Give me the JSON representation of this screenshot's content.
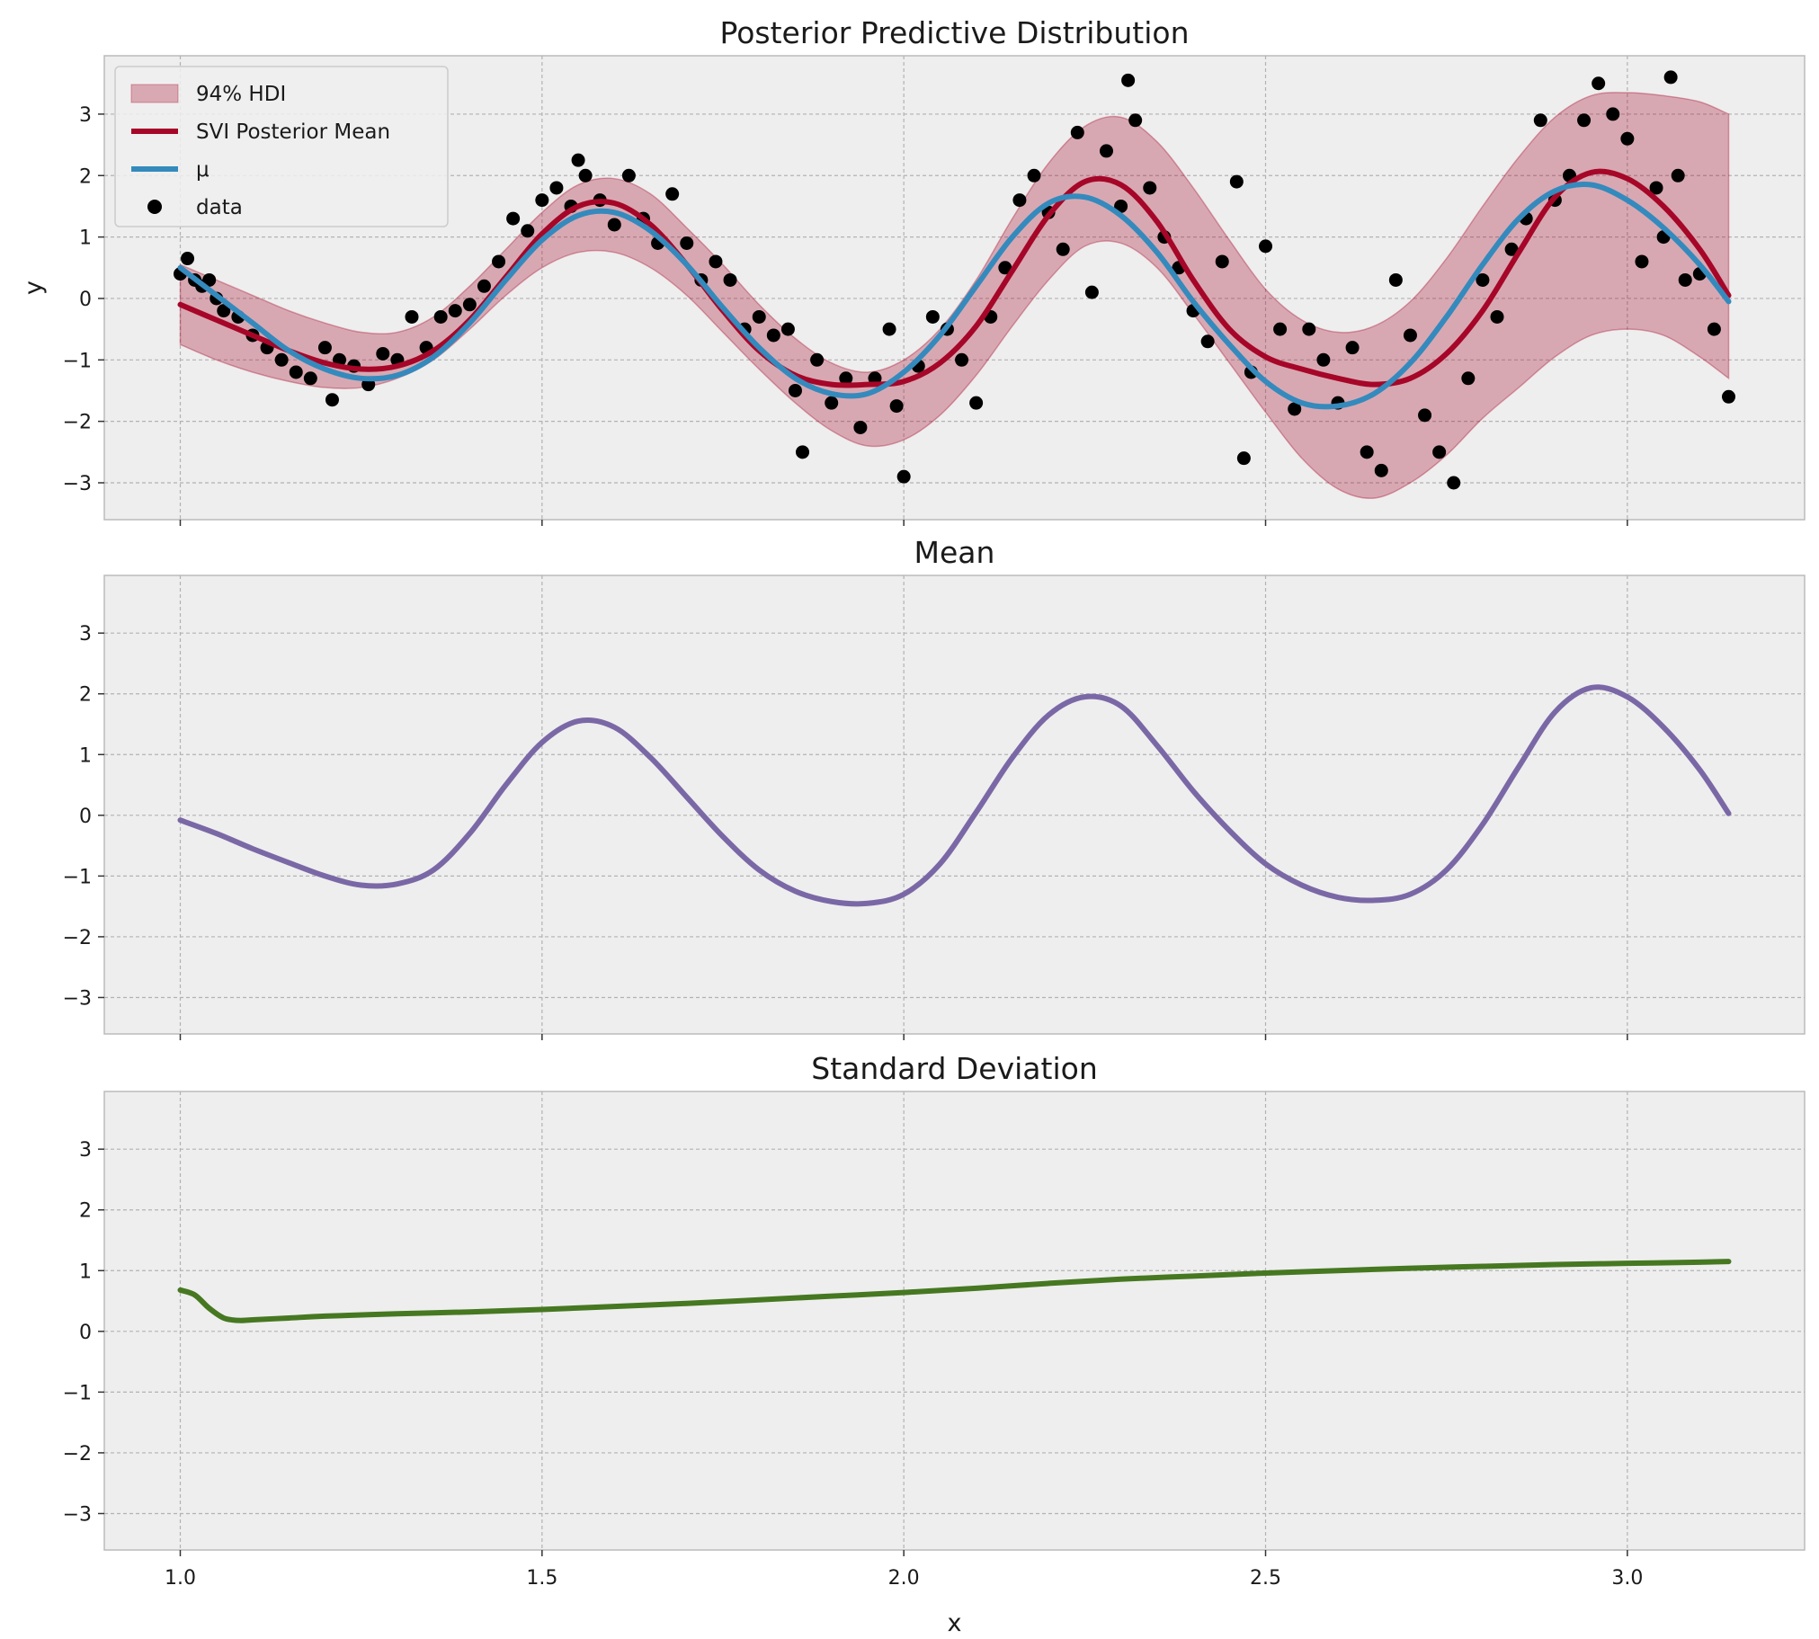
{
  "chart_data": [
    {
      "type": "line",
      "title": "Posterior Predictive Distribution",
      "xlabel": "",
      "ylabel": "y",
      "xlim": [
        0.895,
        3.245
      ],
      "ylim": [
        -3.6,
        3.95
      ],
      "xticks": [
        1.0,
        1.5,
        2.0,
        2.5,
        3.0
      ],
      "yticks": [
        -3,
        -2,
        -1,
        0,
        1,
        2,
        3
      ],
      "xtick_labels_visible": false,
      "grid": true,
      "legend_position": "top-left",
      "legend": [
        "94% HDI",
        "SVI Posterior Mean",
        "μ",
        "data"
      ],
      "colors": {
        "hdi": "#a60628",
        "svi_mean": "#a60628",
        "mu": "#348abd",
        "data": "#000000"
      },
      "series": [
        {
          "name": "94% HDI",
          "kind": "band",
          "x": [
            1.0,
            1.05,
            1.1,
            1.15,
            1.2,
            1.25,
            1.3,
            1.35,
            1.4,
            1.45,
            1.5,
            1.55,
            1.6,
            1.65,
            1.7,
            1.75,
            1.8,
            1.85,
            1.9,
            1.95,
            2.0,
            2.05,
            2.1,
            2.15,
            2.2,
            2.25,
            2.3,
            2.35,
            2.4,
            2.45,
            2.5,
            2.55,
            2.6,
            2.65,
            2.7,
            2.75,
            2.8,
            2.85,
            2.9,
            2.95,
            3.0,
            3.05,
            3.1,
            3.14
          ],
          "lower": [
            -0.75,
            -1.0,
            -1.2,
            -1.35,
            -1.45,
            -1.45,
            -1.3,
            -1.0,
            -0.5,
            0.05,
            0.5,
            0.75,
            0.75,
            0.5,
            0.05,
            -0.55,
            -1.15,
            -1.7,
            -2.15,
            -2.4,
            -2.3,
            -1.9,
            -1.25,
            -0.45,
            0.3,
            0.85,
            0.9,
            0.5,
            -0.25,
            -1.05,
            -1.85,
            -2.6,
            -3.1,
            -3.25,
            -3.0,
            -2.55,
            -1.95,
            -1.45,
            -0.95,
            -0.6,
            -0.5,
            -0.6,
            -0.95,
            -1.3
          ],
          "upper": [
            0.55,
            0.3,
            0.05,
            -0.2,
            -0.4,
            -0.55,
            -0.55,
            -0.3,
            0.2,
            0.8,
            1.4,
            1.85,
            1.95,
            1.7,
            1.15,
            0.55,
            -0.1,
            -0.65,
            -1.05,
            -1.2,
            -1.0,
            -0.5,
            0.3,
            1.3,
            2.2,
            2.8,
            2.95,
            2.55,
            1.8,
            0.95,
            0.15,
            -0.35,
            -0.55,
            -0.45,
            -0.05,
            0.65,
            1.5,
            2.3,
            2.95,
            3.3,
            3.35,
            3.3,
            3.2,
            3.0
          ]
        },
        {
          "name": "SVI Posterior Mean",
          "kind": "line",
          "x": [
            1.0,
            1.05,
            1.1,
            1.15,
            1.2,
            1.25,
            1.3,
            1.35,
            1.4,
            1.45,
            1.5,
            1.55,
            1.6,
            1.65,
            1.7,
            1.75,
            1.8,
            1.85,
            1.9,
            1.95,
            2.0,
            2.05,
            2.1,
            2.15,
            2.2,
            2.25,
            2.3,
            2.35,
            2.4,
            2.45,
            2.5,
            2.55,
            2.6,
            2.65,
            2.7,
            2.75,
            2.8,
            2.85,
            2.9,
            2.95,
            3.0,
            3.05,
            3.1,
            3.14
          ],
          "y": [
            -0.1,
            -0.35,
            -0.6,
            -0.85,
            -1.05,
            -1.15,
            -1.1,
            -0.85,
            -0.35,
            0.35,
            1.05,
            1.5,
            1.55,
            1.2,
            0.55,
            -0.2,
            -0.85,
            -1.25,
            -1.4,
            -1.4,
            -1.35,
            -1.05,
            -0.45,
            0.45,
            1.35,
            1.9,
            1.85,
            1.25,
            0.3,
            -0.5,
            -0.95,
            -1.15,
            -1.3,
            -1.4,
            -1.3,
            -0.9,
            -0.2,
            0.75,
            1.65,
            2.05,
            1.95,
            1.5,
            0.8,
            0.05
          ]
        },
        {
          "name": "μ",
          "kind": "line",
          "x": [
            1.0,
            1.05,
            1.1,
            1.15,
            1.2,
            1.25,
            1.3,
            1.35,
            1.4,
            1.45,
            1.5,
            1.55,
            1.6,
            1.65,
            1.7,
            1.75,
            1.8,
            1.85,
            1.9,
            1.95,
            2.0,
            2.05,
            2.1,
            2.15,
            2.2,
            2.25,
            2.3,
            2.35,
            2.4,
            2.45,
            2.5,
            2.55,
            2.6,
            2.65,
            2.7,
            2.75,
            2.8,
            2.85,
            2.9,
            2.95,
            3.0,
            3.05,
            3.1,
            3.14
          ],
          "y": [
            0.5,
            0.05,
            -0.4,
            -0.85,
            -1.15,
            -1.3,
            -1.25,
            -0.95,
            -0.4,
            0.3,
            0.95,
            1.35,
            1.4,
            1.1,
            0.55,
            -0.15,
            -0.8,
            -1.3,
            -1.55,
            -1.55,
            -1.2,
            -0.6,
            0.2,
            1.0,
            1.55,
            1.65,
            1.35,
            0.75,
            -0.05,
            -0.75,
            -1.35,
            -1.7,
            -1.75,
            -1.55,
            -1.05,
            -0.3,
            0.55,
            1.3,
            1.75,
            1.85,
            1.6,
            1.15,
            0.55,
            -0.05
          ]
        },
        {
          "name": "data",
          "kind": "scatter",
          "x": [
            1.0,
            1.01,
            1.02,
            1.03,
            1.04,
            1.05,
            1.06,
            1.08,
            1.1,
            1.12,
            1.14,
            1.16,
            1.18,
            1.2,
            1.21,
            1.22,
            1.24,
            1.26,
            1.28,
            1.3,
            1.32,
            1.34,
            1.36,
            1.38,
            1.4,
            1.42,
            1.44,
            1.46,
            1.48,
            1.5,
            1.52,
            1.54,
            1.55,
            1.56,
            1.58,
            1.6,
            1.62,
            1.64,
            1.66,
            1.68,
            1.7,
            1.72,
            1.74,
            1.76,
            1.78,
            1.8,
            1.82,
            1.84,
            1.85,
            1.86,
            1.88,
            1.9,
            1.92,
            1.94,
            1.96,
            1.98,
            1.99,
            2.0,
            2.02,
            2.04,
            2.06,
            2.08,
            2.1,
            2.12,
            2.14,
            2.16,
            2.18,
            2.2,
            2.22,
            2.24,
            2.26,
            2.28,
            2.3,
            2.31,
            2.32,
            2.34,
            2.36,
            2.38,
            2.4,
            2.42,
            2.44,
            2.46,
            2.47,
            2.48,
            2.5,
            2.52,
            2.54,
            2.56,
            2.58,
            2.6,
            2.62,
            2.64,
            2.66,
            2.68,
            2.7,
            2.72,
            2.74,
            2.76,
            2.78,
            2.8,
            2.82,
            2.84,
            2.86,
            2.88,
            2.9,
            2.92,
            2.94,
            2.96,
            2.98,
            3.0,
            3.02,
            3.04,
            3.05,
            3.06,
            3.07,
            3.08,
            3.1,
            3.12,
            3.14
          ],
          "y": [
            0.4,
            0.65,
            0.3,
            0.2,
            0.3,
            0.0,
            -0.2,
            -0.3,
            -0.6,
            -0.8,
            -1.0,
            -1.2,
            -1.3,
            -0.8,
            -1.65,
            -1.0,
            -1.1,
            -1.4,
            -0.9,
            -1.0,
            -0.3,
            -0.8,
            -0.3,
            -0.2,
            -0.1,
            0.2,
            0.6,
            1.3,
            1.1,
            1.6,
            1.8,
            1.5,
            2.25,
            2.0,
            1.6,
            1.2,
            2.0,
            1.3,
            0.9,
            1.7,
            0.9,
            0.3,
            0.6,
            0.3,
            -0.5,
            -0.3,
            -0.6,
            -0.5,
            -1.5,
            -2.5,
            -1.0,
            -1.7,
            -1.3,
            -2.1,
            -1.3,
            -0.5,
            -1.75,
            -2.9,
            -1.1,
            -0.3,
            -0.5,
            -1.0,
            -1.7,
            -0.3,
            0.5,
            1.6,
            2.0,
            1.4,
            0.8,
            2.7,
            0.1,
            2.4,
            1.5,
            3.55,
            2.9,
            1.8,
            1.0,
            0.5,
            -0.2,
            -0.7,
            0.6,
            1.9,
            -2.6,
            -1.2,
            0.85,
            -0.5,
            -1.8,
            -0.5,
            -1.0,
            -1.7,
            -0.8,
            -2.5,
            -2.8,
            0.3,
            -0.6,
            -1.9,
            -2.5,
            -3.0,
            -1.3,
            0.3,
            -0.3,
            0.8,
            1.3,
            2.9,
            1.6,
            2.0,
            2.9,
            3.5,
            3.0,
            2.6,
            0.6,
            1.8,
            1.0,
            3.6,
            2.0,
            0.3,
            0.4,
            -0.5,
            -1.6
          ]
        }
      ]
    },
    {
      "type": "line",
      "title": "Mean",
      "xlabel": "",
      "ylabel": "",
      "xlim": [
        0.895,
        3.245
      ],
      "ylim": [
        -3.6,
        3.95
      ],
      "xticks": [
        1.0,
        1.5,
        2.0,
        2.5,
        3.0
      ],
      "yticks": [
        -3,
        -2,
        -1,
        0,
        1,
        2,
        3
      ],
      "xtick_labels_visible": false,
      "grid": true,
      "colors": {
        "line": "#7a68a6"
      },
      "series": [
        {
          "kind": "line",
          "x": [
            1.0,
            1.05,
            1.1,
            1.15,
            1.2,
            1.25,
            1.3,
            1.35,
            1.4,
            1.45,
            1.5,
            1.55,
            1.6,
            1.65,
            1.7,
            1.75,
            1.8,
            1.85,
            1.9,
            1.95,
            2.0,
            2.05,
            2.1,
            2.15,
            2.2,
            2.25,
            2.3,
            2.35,
            2.4,
            2.45,
            2.5,
            2.55,
            2.6,
            2.65,
            2.7,
            2.75,
            2.8,
            2.85,
            2.9,
            2.95,
            3.0,
            3.05,
            3.1,
            3.14
          ],
          "y": [
            -0.08,
            -0.3,
            -0.55,
            -0.78,
            -1.0,
            -1.15,
            -1.13,
            -0.9,
            -0.3,
            0.5,
            1.2,
            1.55,
            1.45,
            0.95,
            0.3,
            -0.35,
            -0.9,
            -1.25,
            -1.42,
            -1.45,
            -1.3,
            -0.8,
            0.05,
            0.95,
            1.65,
            1.95,
            1.8,
            1.15,
            0.4,
            -0.25,
            -0.8,
            -1.15,
            -1.35,
            -1.4,
            -1.3,
            -0.9,
            -0.15,
            0.8,
            1.7,
            2.1,
            1.95,
            1.45,
            0.75,
            0.03
          ]
        }
      ]
    },
    {
      "type": "line",
      "title": "Standard Deviation",
      "xlabel": "x",
      "ylabel": "",
      "xlim": [
        0.895,
        3.245
      ],
      "ylim": [
        -3.6,
        3.95
      ],
      "xticks": [
        1.0,
        1.5,
        2.0,
        2.5,
        3.0
      ],
      "xtick_labels": [
        "1.0",
        "1.5",
        "2.0",
        "2.5",
        "3.0"
      ],
      "yticks": [
        -3,
        -2,
        -1,
        0,
        1,
        2,
        3
      ],
      "grid": true,
      "colors": {
        "line": "#467821"
      },
      "series": [
        {
          "kind": "line",
          "x": [
            1.0,
            1.02,
            1.04,
            1.06,
            1.08,
            1.1,
            1.15,
            1.2,
            1.3,
            1.4,
            1.5,
            1.6,
            1.7,
            1.8,
            1.9,
            2.0,
            2.1,
            2.2,
            2.3,
            2.4,
            2.5,
            2.6,
            2.7,
            2.8,
            2.9,
            3.0,
            3.1,
            3.14
          ],
          "y": [
            0.68,
            0.6,
            0.38,
            0.22,
            0.18,
            0.19,
            0.22,
            0.25,
            0.29,
            0.32,
            0.36,
            0.41,
            0.46,
            0.52,
            0.58,
            0.64,
            0.71,
            0.79,
            0.86,
            0.91,
            0.96,
            1.0,
            1.04,
            1.07,
            1.1,
            1.12,
            1.14,
            1.15
          ]
        }
      ]
    }
  ]
}
